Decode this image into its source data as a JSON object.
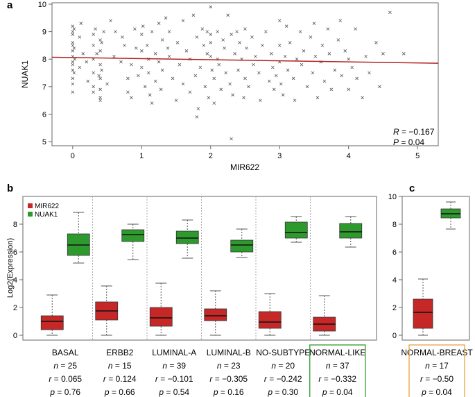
{
  "chart_data": [
    {
      "panel": "a",
      "type": "scatter",
      "xlabel": "MIR622",
      "ylabel": "NUAK1",
      "xlim": [
        -0.3,
        5.3
      ],
      "ylim": [
        4.85,
        10.05
      ],
      "xticks": [
        0,
        1,
        2,
        3,
        4,
        5
      ],
      "yticks": [
        5,
        6,
        7,
        8,
        9,
        10
      ],
      "regression": {
        "x": [
          -0.3,
          5.3
        ],
        "y": [
          8.07,
          7.85
        ],
        "color": "#b22222"
      },
      "annotation": {
        "r_label": "R",
        "r_value": "= −0.167",
        "p_label": "P",
        "p_value": "= 0.04"
      },
      "points": [
        [
          0,
          9.2
        ],
        [
          0,
          9.0
        ],
        [
          0,
          8.9
        ],
        [
          0,
          8.6
        ],
        [
          0,
          8.5
        ],
        [
          0,
          8.3
        ],
        [
          0,
          8.1
        ],
        [
          0,
          7.9
        ],
        [
          0,
          7.8
        ],
        [
          0,
          7.6
        ],
        [
          0,
          7.3
        ],
        [
          0,
          7.1
        ],
        [
          0,
          6.8
        ],
        [
          0.02,
          9.1
        ],
        [
          0.02,
          8.4
        ],
        [
          0.02,
          7.5
        ],
        [
          0.03,
          8.0
        ],
        [
          0.1,
          8.8
        ],
        [
          0.1,
          7.7
        ],
        [
          0.12,
          9.3
        ],
        [
          0.15,
          8.2
        ],
        [
          0.2,
          7.9
        ],
        [
          0.22,
          7.2
        ],
        [
          0.3,
          8.9
        ],
        [
          0.3,
          8.5
        ],
        [
          0.3,
          8.0
        ],
        [
          0.3,
          7.5
        ],
        [
          0.3,
          7.0
        ],
        [
          0.3,
          6.8
        ],
        [
          0.33,
          9.1
        ],
        [
          0.35,
          8.2
        ],
        [
          0.38,
          7.4
        ],
        [
          0.4,
          8.7
        ],
        [
          0.4,
          8.3
        ],
        [
          0.4,
          7.8
        ],
        [
          0.4,
          7.3
        ],
        [
          0.4,
          6.9
        ],
        [
          0.4,
          6.6
        ],
        [
          0.4,
          6.5
        ],
        [
          0.42,
          8.6
        ],
        [
          0.42,
          7.6
        ],
        [
          0.45,
          9.0
        ],
        [
          0.5,
          7.1
        ],
        [
          0.55,
          9.4
        ],
        [
          0.6,
          8.1
        ],
        [
          0.62,
          9.0
        ],
        [
          0.7,
          7.9
        ],
        [
          0.72,
          8.8
        ],
        [
          0.75,
          8.5
        ],
        [
          0.8,
          7.3
        ],
        [
          0.85,
          7.8
        ],
        [
          0.9,
          9.1
        ],
        [
          0.92,
          8.4
        ],
        [
          0.8,
          6.8
        ],
        [
          0.85,
          6.6
        ],
        [
          0.95,
          7.4
        ],
        [
          1.0,
          8.9
        ],
        [
          1.0,
          8.3
        ],
        [
          1.0,
          7.7
        ],
        [
          1.02,
          9.2
        ],
        [
          1.05,
          7.0
        ],
        [
          1.08,
          8.5
        ],
        [
          1.1,
          7.5
        ],
        [
          1.1,
          8.0
        ],
        [
          1.12,
          6.7
        ],
        [
          1.15,
          6.4
        ],
        [
          1.15,
          9.0
        ],
        [
          1.2,
          8.2
        ],
        [
          1.2,
          7.2
        ],
        [
          1.25,
          9.3
        ],
        [
          1.25,
          7.9
        ],
        [
          1.28,
          6.9
        ],
        [
          1.3,
          8.7
        ],
        [
          1.3,
          7.6
        ],
        [
          1.35,
          9.5
        ],
        [
          1.38,
          8.4
        ],
        [
          1.4,
          9.0
        ],
        [
          1.4,
          8.1
        ],
        [
          1.45,
          7.3
        ],
        [
          1.5,
          6.5
        ],
        [
          1.52,
          8.6
        ],
        [
          1.55,
          7.8
        ],
        [
          1.6,
          9.4
        ],
        [
          1.6,
          7.1
        ],
        [
          1.65,
          8.3
        ],
        [
          1.7,
          8.0
        ],
        [
          1.7,
          6.8
        ],
        [
          1.75,
          9.6
        ],
        [
          1.78,
          7.4
        ],
        [
          1.8,
          8.8
        ],
        [
          1.8,
          5.9
        ],
        [
          1.82,
          6.2
        ],
        [
          1.85,
          7.7
        ],
        [
          1.88,
          9.1
        ],
        [
          1.9,
          8.5
        ],
        [
          1.92,
          7.0
        ],
        [
          1.95,
          9.0
        ],
        [
          1.95,
          8.2
        ],
        [
          1.97,
          6.6
        ],
        [
          2.0,
          9.9
        ],
        [
          2.0,
          8.9
        ],
        [
          2.0,
          8.6
        ],
        [
          2.0,
          8.1
        ],
        [
          2.02,
          7.6
        ],
        [
          2.05,
          7.3
        ],
        [
          2.05,
          6.4
        ],
        [
          2.1,
          9.0
        ],
        [
          2.1,
          8.0
        ],
        [
          2.12,
          7.8
        ],
        [
          2.15,
          6.9
        ],
        [
          2.18,
          8.7
        ],
        [
          2.2,
          8.4
        ],
        [
          2.22,
          7.5
        ],
        [
          2.25,
          9.6
        ],
        [
          2.28,
          7.1
        ],
        [
          2.3,
          8.9
        ],
        [
          2.3,
          5.1
        ],
        [
          2.32,
          6.7
        ],
        [
          2.35,
          8.2
        ],
        [
          2.38,
          9.0
        ],
        [
          2.4,
          7.6
        ],
        [
          2.42,
          8.6
        ],
        [
          2.45,
          8.0
        ],
        [
          2.48,
          6.6
        ],
        [
          2.5,
          9.1
        ],
        [
          2.5,
          7.3
        ],
        [
          2.52,
          8.4
        ],
        [
          2.55,
          7.0
        ],
        [
          2.6,
          8.8
        ],
        [
          2.62,
          7.8
        ],
        [
          2.65,
          8.1
        ],
        [
          2.7,
          7.5
        ],
        [
          2.72,
          6.5
        ],
        [
          2.75,
          8.5
        ],
        [
          2.8,
          9.0
        ],
        [
          2.85,
          7.2
        ],
        [
          2.88,
          8.2
        ],
        [
          2.9,
          7.7
        ],
        [
          2.92,
          6.9
        ],
        [
          2.95,
          7.4
        ],
        [
          3.0,
          9.4
        ],
        [
          3.0,
          8.5
        ],
        [
          3.0,
          7.9
        ],
        [
          3.02,
          7.1
        ],
        [
          3.05,
          6.7
        ],
        [
          3.08,
          8.1
        ],
        [
          3.1,
          9.2
        ],
        [
          3.12,
          7.6
        ],
        [
          3.15,
          8.6
        ],
        [
          3.2,
          7.3
        ],
        [
          3.22,
          6.5
        ],
        [
          3.25,
          8.0
        ],
        [
          3.3,
          9.0
        ],
        [
          3.32,
          7.8
        ],
        [
          3.35,
          8.3
        ],
        [
          3.4,
          7.0
        ],
        [
          3.45,
          8.8
        ],
        [
          3.48,
          7.5
        ],
        [
          3.5,
          9.3
        ],
        [
          3.52,
          8.1
        ],
        [
          3.55,
          6.6
        ],
        [
          3.6,
          7.9
        ],
        [
          3.62,
          8.5
        ],
        [
          3.65,
          7.2
        ],
        [
          3.7,
          9.1
        ],
        [
          3.72,
          8.2
        ],
        [
          3.75,
          6.9
        ],
        [
          3.8,
          7.6
        ],
        [
          3.85,
          8.7
        ],
        [
          3.88,
          9.4
        ],
        [
          3.9,
          7.4
        ],
        [
          3.95,
          8.3
        ],
        [
          4.0,
          6.9
        ],
        [
          4.0,
          8.0
        ],
        [
          4.05,
          7.7
        ],
        [
          4.1,
          9.1
        ],
        [
          4.12,
          7.3
        ],
        [
          4.2,
          6.6
        ],
        [
          4.25,
          8.1
        ],
        [
          4.3,
          7.5
        ],
        [
          4.4,
          8.6
        ],
        [
          4.45,
          7.0
        ],
        [
          4.5,
          8.2
        ],
        [
          4.6,
          9.7
        ],
        [
          4.8,
          8.2
        ]
      ]
    },
    {
      "panel": "b",
      "type": "boxplot",
      "ylabel": "Log2(Expression)",
      "ylim": [
        -0.35,
        10.0
      ],
      "yticks": [
        0,
        2,
        4,
        6,
        8
      ],
      "legend": [
        {
          "name": "MIR622",
          "color": "#c62828"
        },
        {
          "name": "NUAK1",
          "color": "#2e9a2e"
        }
      ],
      "groups": [
        {
          "name": "BASAL",
          "n": "= 25",
          "r": "= 0.065",
          "p": "= 0.76",
          "highlight": "",
          "mir": {
            "min": 0.0,
            "q1": 0.4,
            "median": 1.0,
            "q3": 1.4,
            "max": 2.9
          },
          "nuak": {
            "min": 5.2,
            "q1": 5.75,
            "median": 6.5,
            "q3": 7.3,
            "max": 8.85
          }
        },
        {
          "name": "ERBB2",
          "n": "= 15",
          "r": "= 0.124",
          "p": "= 0.66",
          "highlight": "",
          "mir": {
            "min": 0.0,
            "q1": 1.1,
            "median": 1.75,
            "q3": 2.4,
            "max": 3.55
          },
          "nuak": {
            "min": 5.45,
            "q1": 6.75,
            "median": 7.25,
            "q3": 7.6,
            "max": 8.0
          }
        },
        {
          "name": "LUMINAL-A",
          "n": "= 39",
          "r": "= −0.101",
          "p": "= 0.54",
          "highlight": "",
          "mir": {
            "min": 0.0,
            "q1": 0.65,
            "median": 1.25,
            "q3": 2.0,
            "max": 3.75
          },
          "nuak": {
            "min": 5.55,
            "q1": 6.6,
            "median": 7.0,
            "q3": 7.5,
            "max": 8.3
          }
        },
        {
          "name": "LUMINAL-B",
          "n": "= 23",
          "r": "= −0.305",
          "p": "= 0.16",
          "highlight": "",
          "mir": {
            "min": 0.0,
            "q1": 1.05,
            "median": 1.4,
            "q3": 1.9,
            "max": 3.2
          },
          "nuak": {
            "min": 5.6,
            "q1": 6.0,
            "median": 6.5,
            "q3": 6.85,
            "max": 7.65
          }
        },
        {
          "name": "NO-SUBTYPE",
          "n": "= 20",
          "r": "= −0.242",
          "p": "= 0.30",
          "highlight": "",
          "mir": {
            "min": 0.0,
            "q1": 0.5,
            "median": 0.95,
            "q3": 1.7,
            "max": 3.0
          },
          "nuak": {
            "min": 6.7,
            "q1": 7.0,
            "median": 7.4,
            "q3": 8.15,
            "max": 8.55
          }
        },
        {
          "name": "NORMAL-LIKE",
          "n": "= 37",
          "r": "= −0.332",
          "p": "= 0.04",
          "highlight": "#2e9a2e",
          "mir": {
            "min": 0.0,
            "q1": 0.3,
            "median": 0.8,
            "q3": 1.3,
            "max": 2.85
          },
          "nuak": {
            "min": 6.35,
            "q1": 7.0,
            "median": 7.45,
            "q3": 8.05,
            "max": 8.55
          }
        }
      ]
    },
    {
      "panel": "c",
      "type": "boxplot",
      "ylim": [
        -0.35,
        10.0
      ],
      "yticks": [
        0,
        2,
        4,
        6,
        8,
        10
      ],
      "groups": [
        {
          "name": "NORMAL-BREAST",
          "n": "= 17",
          "r": "= −0.50",
          "p": "= 0.04",
          "highlight": "#e8a040",
          "mir": {
            "min": 0.0,
            "q1": 0.5,
            "median": 1.65,
            "q3": 2.6,
            "max": 4.05
          },
          "nuak": {
            "min": 7.65,
            "q1": 8.45,
            "median": 8.75,
            "q3": 9.1,
            "max": 9.6
          }
        }
      ]
    }
  ],
  "labels": {
    "panel_a": "a",
    "panel_b": "b",
    "panel_c": "c",
    "n_prefix": "n",
    "r_prefix": "r",
    "p_prefix": "p"
  }
}
